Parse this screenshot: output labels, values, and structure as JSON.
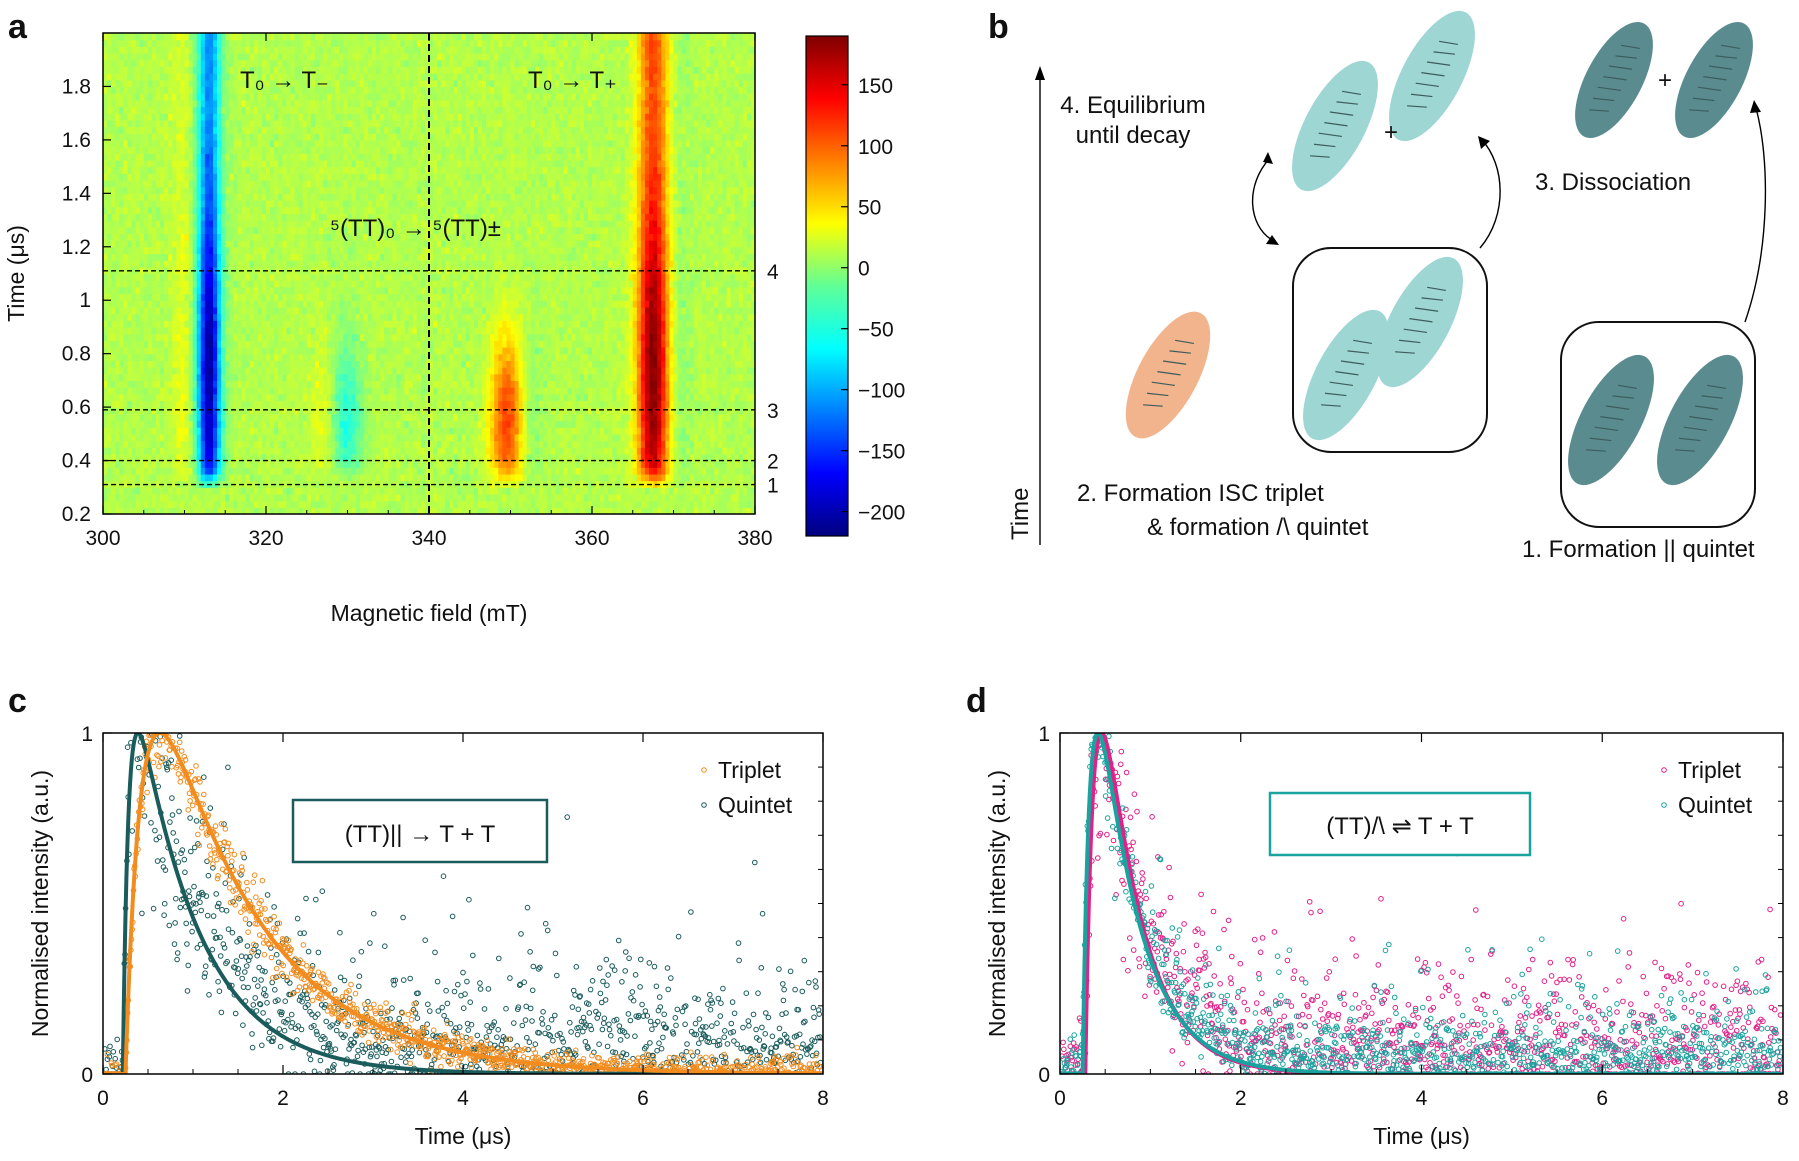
{
  "panels": {
    "a": {
      "letter": "a",
      "annotations": {
        "t0_tminus": "T₀ → T₋",
        "t0_tplus": "T₀ → T₊",
        "quintet": "⁵(TT)₀ → ⁵(TT)±"
      },
      "line_labels": [
        "4",
        "3",
        "2",
        "1"
      ]
    },
    "b": {
      "letter": "b",
      "time_label": "Time",
      "step1": "1. Formation || quintet",
      "step2a": "2. Formation ISC triplet",
      "step2b": "& formation /\\ quintet",
      "step3": "3. Dissociation",
      "step4a": "4. Equilibrium",
      "step4b": "until decay",
      "plus": "+"
    },
    "c": {
      "letter": "c",
      "box_label": "(TT)|| → T + T"
    },
    "d": {
      "letter": "d",
      "box_label": "(TT)/\\ ⇌ T + T"
    }
  },
  "colors": {
    "triplet_c": "#f28c1e",
    "quintet_c": "#1a5b5b",
    "triplet_d": "#e0218a",
    "quintet_d": "#1aa39e",
    "orange_molecule": "#f2b48c",
    "teal_molecule": "#9ed6d3",
    "dark_molecule": "#5a8c8f"
  },
  "chart_data": [
    {
      "id": "a",
      "type": "heatmap",
      "xlabel": "Magnetic field (mT)",
      "ylabel": "Time (μs)",
      "xlim": [
        300,
        380
      ],
      "ylim": [
        0.2,
        2.0
      ],
      "xticks": [
        300,
        320,
        340,
        360,
        380
      ],
      "yticks": [
        0.2,
        0.4,
        0.6,
        0.8,
        1.0,
        1.2,
        1.4,
        1.6,
        1.8
      ],
      "ytick_labels": [
        "0.2",
        "0.4",
        "0.6",
        "0.8",
        "1",
        "1.2",
        "1.4",
        "1.6",
        "1.8"
      ],
      "vline_x": 340,
      "hlines": [
        {
          "y": 1.11,
          "label": "4"
        },
        {
          "y": 0.59,
          "label": "3"
        },
        {
          "y": 0.4,
          "label": "2"
        },
        {
          "y": 0.31,
          "label": "1"
        }
      ],
      "colorbar": {
        "range": [
          -220,
          190
        ],
        "ticks": [
          150,
          100,
          50,
          0,
          -50,
          -100,
          -150,
          -200
        ],
        "tick_labels": [
          "150",
          "100",
          "50",
          "0",
          "−50",
          "−100",
          "−150",
          "−200"
        ]
      },
      "features": [
        {
          "field": 313,
          "sign": "negative",
          "peak": -215,
          "tmin": 0.33,
          "tmax": 2.0
        },
        {
          "field": 330,
          "sign": "negative",
          "peak": -55,
          "tmin": 0.35,
          "tmax": 1.2
        },
        {
          "field": 349.5,
          "sign": "positive",
          "peak": 110,
          "tmin": 0.33,
          "tmax": 1.05
        },
        {
          "field": 367.5,
          "sign": "positive",
          "peak": 185,
          "tmin": 0.33,
          "tmax": 2.0
        }
      ]
    },
    {
      "id": "c",
      "type": "scatter",
      "xlabel": "Time (μs)",
      "ylabel": "Normalised intensity (a.u.)",
      "xlim": [
        0,
        8
      ],
      "ylim": [
        0,
        1
      ],
      "xticks": [
        0,
        2,
        4,
        6,
        8
      ],
      "yticks": [
        0,
        1
      ],
      "legend": "top-right",
      "series": [
        {
          "name": "Triplet",
          "onset": 0.25,
          "rise": 0.2,
          "decay": 1.15,
          "noise": 0.05,
          "fit": true
        },
        {
          "name": "Quintet",
          "onset": 0.22,
          "rise": 0.07,
          "decay": 0.7,
          "noise": 0.13,
          "tail": 0.06,
          "fit": true
        }
      ]
    },
    {
      "id": "d",
      "type": "scatter",
      "xlabel": "Time (μs)",
      "ylabel": "Normalised intensity (a.u.)",
      "xlim": [
        0,
        8
      ],
      "ylim": [
        0,
        1
      ],
      "xticks": [
        0,
        2,
        4,
        6,
        8
      ],
      "yticks": [
        0,
        1
      ],
      "legend": "top-right",
      "series": [
        {
          "name": "Triplet",
          "onset": 0.28,
          "rise": 0.12,
          "decay": 0.42,
          "noise": 0.12,
          "tail": 0.05,
          "fit": true
        },
        {
          "name": "Quintet",
          "onset": 0.25,
          "rise": 0.1,
          "decay": 0.45,
          "noise": 0.06,
          "tail": 0.04,
          "fit": true
        }
      ]
    }
  ]
}
